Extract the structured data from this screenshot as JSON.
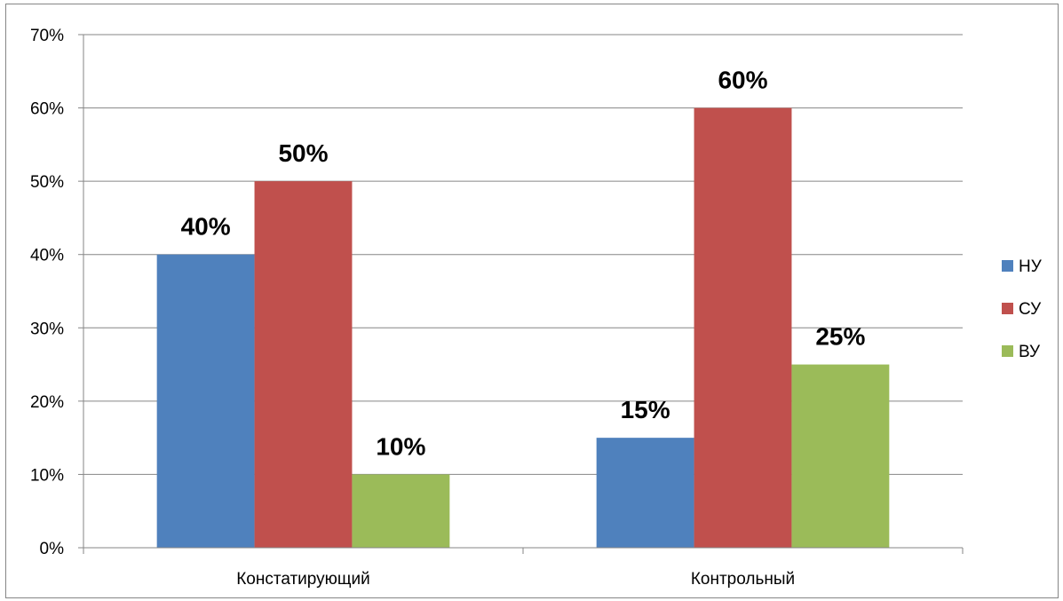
{
  "chart_data": {
    "type": "bar",
    "title": "",
    "xlabel": "",
    "ylabel": "",
    "categories": [
      "Констатирующий",
      "Контрольный"
    ],
    "series": [
      {
        "name": "НУ",
        "color": "#4F81BD",
        "values": [
          40,
          15
        ],
        "labels": [
          "40%",
          "15%"
        ]
      },
      {
        "name": "СУ",
        "color": "#C0504D",
        "values": [
          50,
          60
        ],
        "labels": [
          "50%",
          "60%"
        ]
      },
      {
        "name": "ВУ",
        "color": "#9BBB59",
        "values": [
          10,
          25
        ],
        "labels": [
          "10%",
          "25%"
        ]
      }
    ],
    "ylim": [
      0,
      70
    ],
    "yticks": [
      0,
      10,
      20,
      30,
      40,
      50,
      60,
      70
    ],
    "ytick_labels": [
      "0%",
      "10%",
      "20%",
      "30%",
      "40%",
      "50%",
      "60%",
      "70%"
    ],
    "grid": true,
    "legend": "right"
  }
}
